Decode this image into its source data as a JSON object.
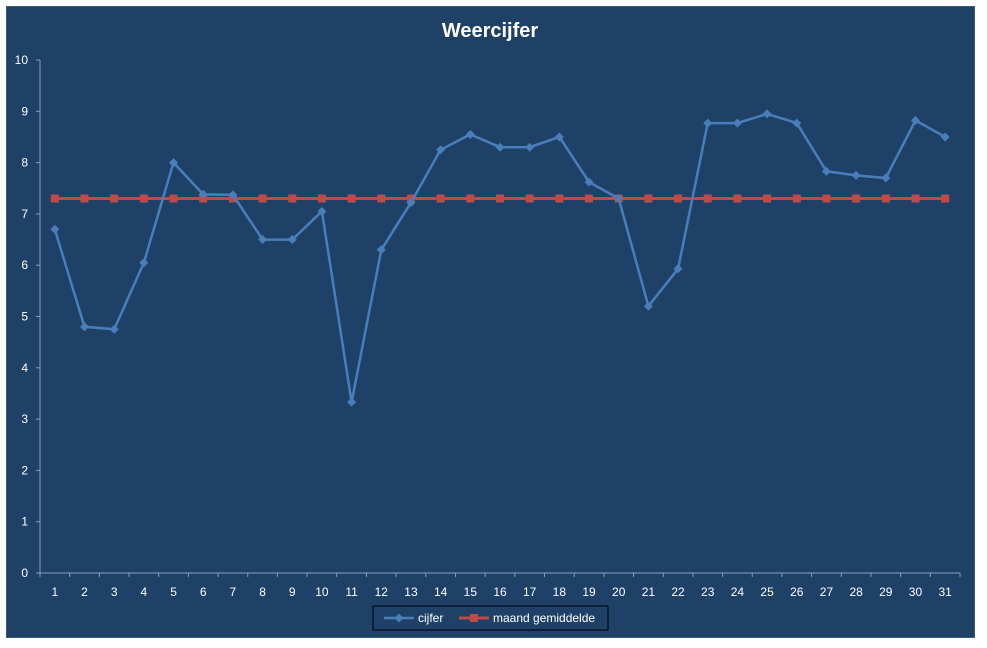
{
  "chart_data": {
    "type": "line",
    "title": "Weercijfer",
    "xlabel": "",
    "ylabel": "",
    "ylim": [
      0,
      10
    ],
    "yticks": [
      "0",
      "1",
      "2",
      "3",
      "4",
      "5",
      "6",
      "7",
      "8",
      "9",
      "10"
    ],
    "categories": [
      "1",
      "2",
      "3",
      "4",
      "5",
      "6",
      "7",
      "8",
      "9",
      "10",
      "11",
      "12",
      "13",
      "14",
      "15",
      "16",
      "17",
      "18",
      "19",
      "20",
      "21",
      "22",
      "23",
      "24",
      "25",
      "26",
      "27",
      "28",
      "29",
      "30",
      "31"
    ],
    "grid": false,
    "legend_position": "bottom",
    "series": [
      {
        "name": "cijfer",
        "color": "#4a7ebb",
        "marker": "diamond",
        "values": [
          6.7,
          4.8,
          4.75,
          6.05,
          8.0,
          7.38,
          7.37,
          6.5,
          6.5,
          7.05,
          3.33,
          6.3,
          7.22,
          8.25,
          8.55,
          8.3,
          8.3,
          8.5,
          7.62,
          7.3,
          5.2,
          5.93,
          8.77,
          8.77,
          8.95,
          8.77,
          7.83,
          7.75,
          7.7,
          8.82,
          8.5
        ]
      },
      {
        "name": "maand gemiddelde",
        "color": "#be4b48",
        "marker": "square",
        "values": [
          7.3,
          7.3,
          7.3,
          7.3,
          7.3,
          7.3,
          7.3,
          7.3,
          7.3,
          7.3,
          7.3,
          7.3,
          7.3,
          7.3,
          7.3,
          7.3,
          7.3,
          7.3,
          7.3,
          7.3,
          7.3,
          7.3,
          7.3,
          7.3,
          7.3,
          7.3,
          7.3,
          7.3,
          7.3,
          7.3,
          7.3
        ]
      }
    ]
  }
}
